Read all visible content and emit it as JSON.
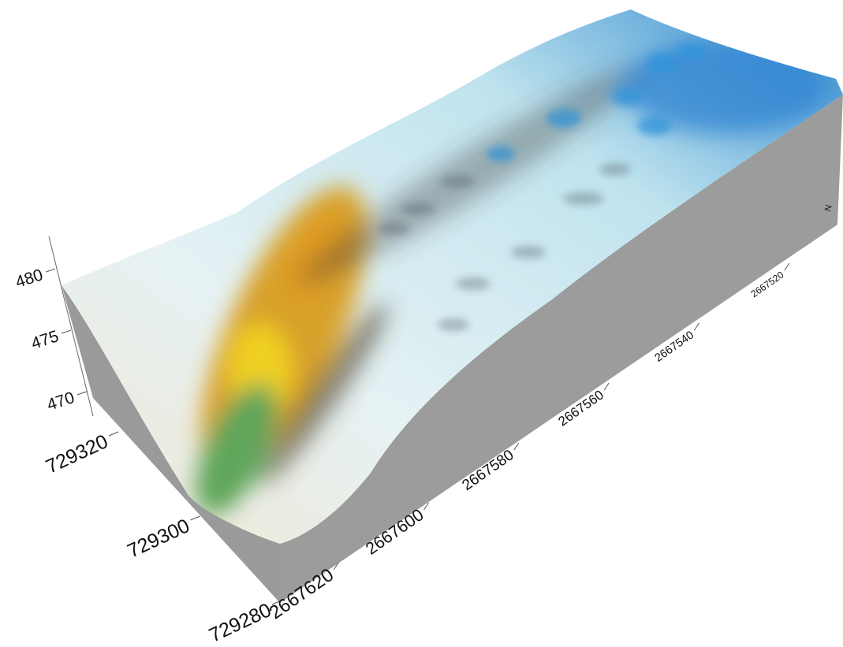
{
  "chart_data": {
    "type": "surface3d",
    "xlim": [
      2667510,
      2667630
    ],
    "xticks": [
      2667520,
      2667540,
      2667560,
      2667580,
      2667600,
      2667620
    ],
    "ylim": [
      729280,
      729320
    ],
    "yticks": [
      729280,
      729300,
      729320
    ],
    "zlim": [
      468,
      482
    ],
    "zticks": [
      470,
      475,
      480
    ],
    "north_label": "N"
  }
}
